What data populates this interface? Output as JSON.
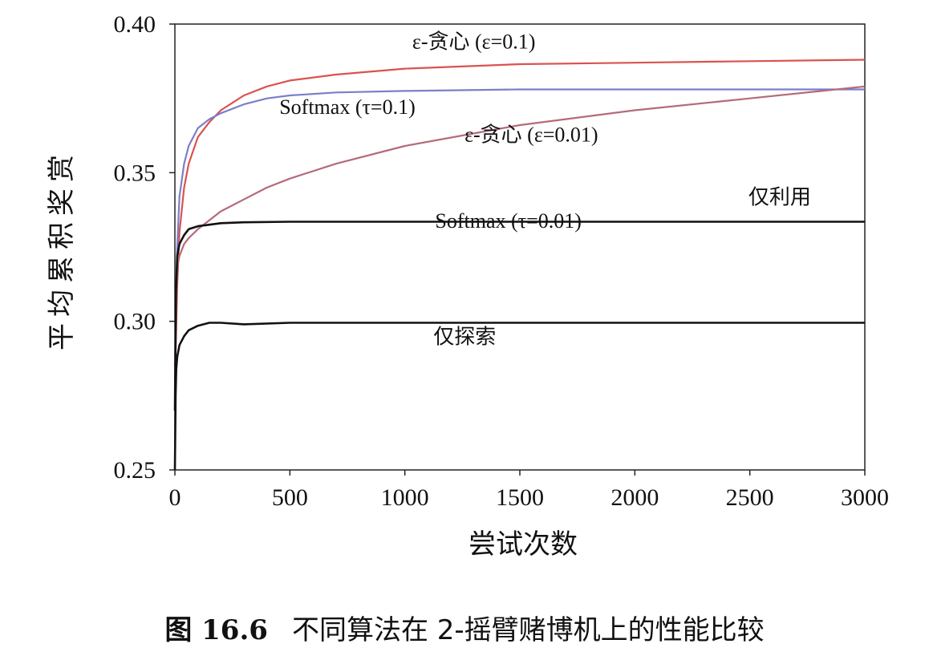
{
  "chart_data": {
    "type": "line",
    "xlabel": "尝试次数",
    "ylabel": "平均累积奖赏",
    "xlim": [
      0,
      3000
    ],
    "ylim": [
      0.25,
      0.4
    ],
    "x_ticks": [
      "0",
      "500",
      "1000",
      "1500",
      "2000",
      "2500",
      "3000"
    ],
    "y_ticks": [
      "0.25",
      "0.30",
      "0.35",
      "0.40"
    ],
    "grid": false,
    "series": [
      {
        "name": "ε-贪心 (ε=0.1)",
        "color": "#d9534f",
        "x": [
          0,
          10,
          20,
          40,
          60,
          100,
          150,
          200,
          300,
          400,
          500,
          700,
          1000,
          1500,
          2000,
          2500,
          3000
        ],
        "y": [
          0.28,
          0.312,
          0.33,
          0.345,
          0.353,
          0.362,
          0.367,
          0.371,
          0.376,
          0.379,
          0.381,
          0.383,
          0.385,
          0.3865,
          0.387,
          0.3875,
          0.388
        ]
      },
      {
        "name": "Softmax (τ=0.1)",
        "color": "#7b7fc9",
        "x": [
          0,
          10,
          20,
          40,
          60,
          100,
          150,
          200,
          300,
          400,
          500,
          700,
          1000,
          1500,
          2000,
          2500,
          3000
        ],
        "y": [
          0.285,
          0.325,
          0.342,
          0.353,
          0.359,
          0.365,
          0.368,
          0.37,
          0.373,
          0.375,
          0.376,
          0.377,
          0.3775,
          0.378,
          0.378,
          0.378,
          0.378
        ]
      },
      {
        "name": "ε-贪心 (ε=0.01)",
        "color": "#b56a7a",
        "x": [
          0,
          10,
          20,
          40,
          60,
          100,
          150,
          200,
          300,
          400,
          500,
          700,
          1000,
          1500,
          2000,
          2500,
          3000
        ],
        "y": [
          0.285,
          0.318,
          0.322,
          0.326,
          0.328,
          0.331,
          0.334,
          0.337,
          0.341,
          0.345,
          0.348,
          0.353,
          0.359,
          0.366,
          0.371,
          0.375,
          0.379
        ]
      },
      {
        "name": "仅利用",
        "color": "#111111",
        "x": [
          0,
          5,
          10,
          20,
          40,
          60,
          100,
          150,
          200,
          300,
          500,
          1000,
          1500,
          2000,
          2500,
          3000
        ],
        "y": [
          0.27,
          0.31,
          0.322,
          0.326,
          0.329,
          0.331,
          0.332,
          0.3325,
          0.333,
          0.3333,
          0.3335,
          0.3335,
          0.3335,
          0.3335,
          0.3335,
          0.3335
        ]
      },
      {
        "name": "仅探索",
        "color": "#111111",
        "x": [
          0,
          3,
          6,
          10,
          20,
          40,
          60,
          100,
          150,
          200,
          300,
          500,
          1000,
          1500,
          2000,
          2500,
          3000
        ],
        "y": [
          0.25,
          0.275,
          0.284,
          0.288,
          0.292,
          0.295,
          0.297,
          0.2985,
          0.2995,
          0.2995,
          0.299,
          0.2995,
          0.2995,
          0.2995,
          0.2995,
          0.2995,
          0.2995
        ]
      }
    ],
    "annotations": [
      {
        "text": "ε-贪心 (ε=0.1)",
        "x": 1300,
        "y": 0.3918
      },
      {
        "text": "Softmax (τ=0.1)",
        "x": 750,
        "y": 0.3698
      },
      {
        "text": "ε-贪心 (ε=0.01)",
        "x": 1550,
        "y": 0.3605
      },
      {
        "text": "仅利用",
        "x": 2630,
        "y": 0.3395
      },
      {
        "text": "Softmax (τ=0.01)",
        "x": 1450,
        "y": 0.3315
      },
      {
        "text": "仅探索",
        "x": 1260,
        "y": 0.2925
      }
    ]
  },
  "caption": {
    "number": "图 16.6",
    "text": "不同算法在 2-摇臂赌博机上的性能比较"
  }
}
